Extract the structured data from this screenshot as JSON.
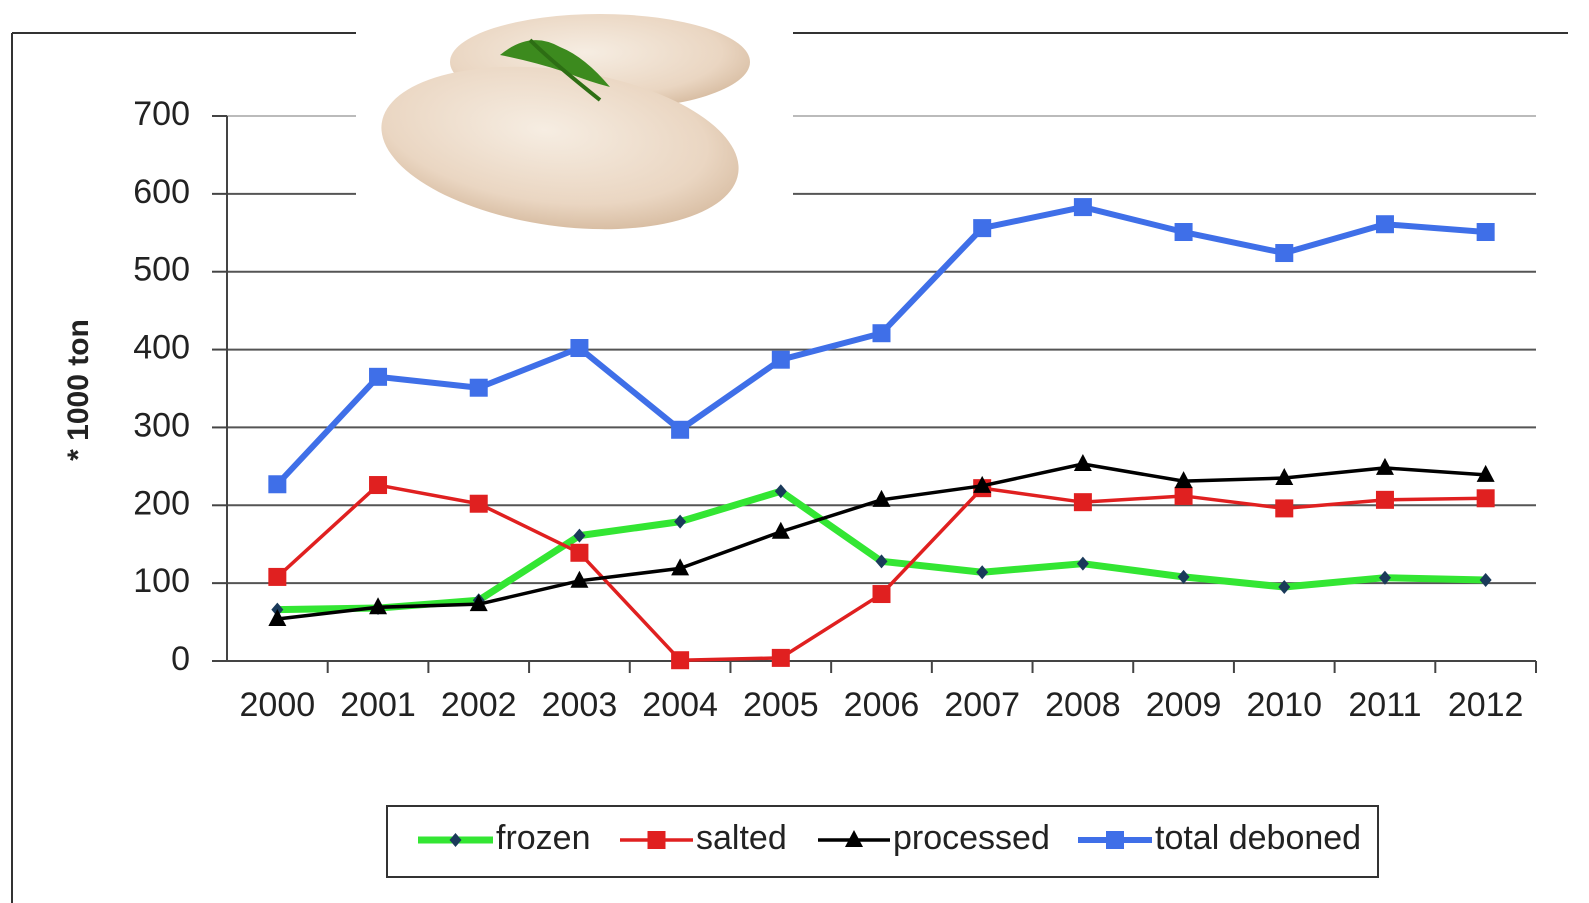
{
  "chart_data": {
    "type": "line",
    "y_label": "* 1000 ton",
    "categories": [
      "2000",
      "2001",
      "2002",
      "2003",
      "2004",
      "2005",
      "2006",
      "2007",
      "2008",
      "2009",
      "2010",
      "2011",
      "2012"
    ],
    "ylim": [
      0,
      700
    ],
    "yticks": [
      0,
      100,
      200,
      300,
      400,
      500,
      600,
      700
    ],
    "grid": true,
    "legend": "bottom",
    "series": [
      {
        "name": "frozen",
        "color": "#33e633",
        "marker": "diamond",
        "marker_color": "#1a3a5a",
        "line_width": 7,
        "values": [
          66,
          68,
          78,
          161,
          179,
          218,
          128,
          114,
          125,
          108,
          95,
          107,
          104
        ]
      },
      {
        "name": "salted",
        "color": "#e02020",
        "marker": "square",
        "marker_color": "#e02020",
        "line_width": 3.5,
        "values": [
          108,
          226,
          202,
          139,
          1,
          4,
          86,
          222,
          204,
          212,
          196,
          207,
          209
        ]
      },
      {
        "name": "processed",
        "color": "#000000",
        "marker": "triangle",
        "marker_color": "#000000",
        "line_width": 3.5,
        "values": [
          54,
          69,
          73,
          103,
          119,
          166,
          207,
          225,
          253,
          231,
          235,
          248,
          239
        ]
      },
      {
        "name": "total deboned",
        "color": "#3f6fe8",
        "marker": "square",
        "marker_color": "#3f6fe8",
        "line_width": 6,
        "values": [
          227,
          365,
          351,
          402,
          297,
          387,
          421,
          556,
          583,
          551,
          524,
          561,
          551
        ]
      }
    ]
  }
}
